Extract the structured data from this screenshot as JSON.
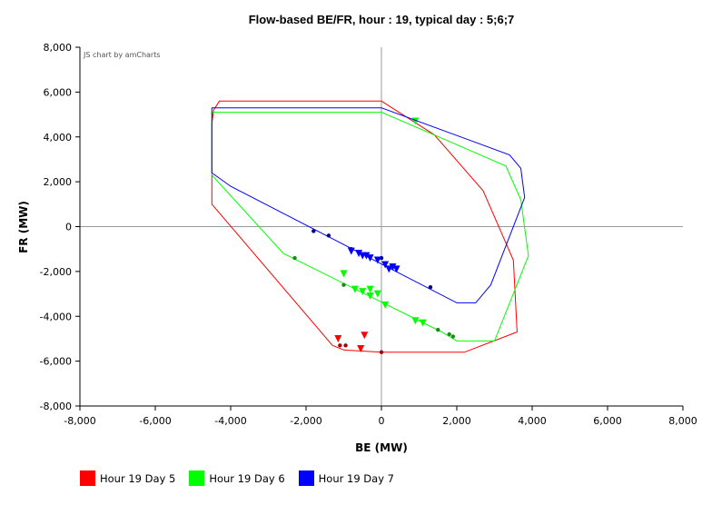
{
  "chart_data": {
    "type": "scatter",
    "title": "Flow-based BE/FR, hour : 19, typical day : 5;6;7",
    "xlabel": "BE (MW)",
    "ylabel": "FR (MW)",
    "xlim": [
      -8000,
      8000
    ],
    "ylim": [
      -8000,
      8000
    ],
    "x_ticks": [
      "-8,000",
      "-6,000",
      "-4,000",
      "-2,000",
      "0",
      "2,000",
      "4,000",
      "6,000",
      "8,000"
    ],
    "y_ticks": [
      "8,000",
      "6,000",
      "4,000",
      "2,000",
      "0",
      "-2,000",
      "-4,000",
      "-6,000",
      "-8,000"
    ],
    "credit": "JS chart by amCharts",
    "grid": "zero lines only",
    "legend_position": "bottom-left",
    "series": [
      {
        "name": "Hour 19 Day 5",
        "color": "#ff0000",
        "domain": [
          [
            0,
            5600
          ],
          [
            -4300,
            5600
          ],
          [
            -4450,
            5200
          ],
          [
            -4500,
            4600
          ],
          [
            -4500,
            1000
          ],
          [
            -1300,
            -5300
          ],
          [
            -1000,
            -5500
          ],
          [
            0,
            -5600
          ],
          [
            2200,
            -5600
          ],
          [
            3600,
            -4700
          ],
          [
            3500,
            -1500
          ],
          [
            2700,
            1600
          ],
          [
            1400,
            4100
          ],
          [
            0,
            5600
          ]
        ],
        "points": [
          [
            -1100,
            -5300
          ],
          [
            -950,
            -5300
          ],
          [
            0,
            -5600
          ]
        ],
        "triangles": [
          [
            -1150,
            -5000
          ],
          [
            -450,
            -4850
          ],
          [
            -550,
            -5450
          ]
        ]
      },
      {
        "name": "Hour 19 Day 6",
        "color": "#00ff00",
        "domain": [
          [
            0,
            5100
          ],
          [
            -4500,
            5100
          ],
          [
            -4500,
            2300
          ],
          [
            -2600,
            -1200
          ],
          [
            1600,
            -4700
          ],
          [
            2000,
            -5100
          ],
          [
            3000,
            -5100
          ],
          [
            3900,
            -1300
          ],
          [
            3700,
            1200
          ],
          [
            3300,
            2700
          ],
          [
            1800,
            3800
          ],
          [
            0,
            5100
          ]
        ],
        "points": [
          [
            -2300,
            -1400
          ],
          [
            -1000,
            -2600
          ],
          [
            1800,
            -4800
          ],
          [
            1900,
            -4900
          ],
          [
            1500,
            -4600
          ]
        ],
        "triangles": [
          [
            -1000,
            -2100
          ],
          [
            -700,
            -2800
          ],
          [
            -500,
            -2900
          ],
          [
            -300,
            -2800
          ],
          [
            -300,
            -3100
          ],
          [
            -100,
            -3000
          ],
          [
            100,
            -3500
          ],
          [
            900,
            -4200
          ],
          [
            1100,
            -4300
          ],
          [
            900,
            4700
          ]
        ]
      },
      {
        "name": "Hour 19 Day 7",
        "color": "#0000ff",
        "domain": [
          [
            0,
            5300
          ],
          [
            -4500,
            5300
          ],
          [
            -4500,
            2400
          ],
          [
            -4000,
            1800
          ],
          [
            2000,
            -3400
          ],
          [
            2500,
            -3400
          ],
          [
            2900,
            -2600
          ],
          [
            3800,
            1300
          ],
          [
            3700,
            2600
          ],
          [
            3400,
            3200
          ],
          [
            0,
            5300
          ]
        ],
        "points": [
          [
            -1800,
            -200
          ],
          [
            -1400,
            -400
          ],
          [
            -800,
            -1000
          ],
          [
            1300,
            -2700
          ],
          [
            0,
            -1400
          ]
        ],
        "triangles": [
          [
            -800,
            -1100
          ],
          [
            -600,
            -1200
          ],
          [
            -500,
            -1300
          ],
          [
            -400,
            -1300
          ],
          [
            -300,
            -1400
          ],
          [
            -100,
            -1500
          ],
          [
            100,
            -1700
          ],
          [
            200,
            -1900
          ],
          [
            300,
            -1800
          ],
          [
            400,
            -1900
          ]
        ]
      }
    ]
  }
}
